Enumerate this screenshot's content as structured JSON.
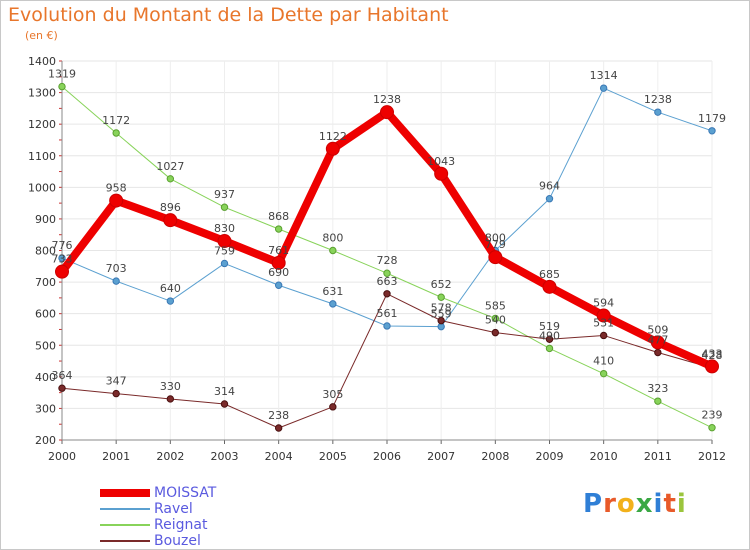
{
  "title": "Evolution du Montant de la Dette par Habitant",
  "unit": "(en €)",
  "logo": {
    "letters": [
      "P",
      "r",
      "o",
      "x",
      "i",
      "t",
      "i"
    ],
    "colors": [
      "#2f7fd6",
      "#e85a2a",
      "#f2b11b",
      "#3aa844",
      "#2f7fd6",
      "#e85a2a",
      "#9bc53d"
    ]
  },
  "chart_data": {
    "type": "line",
    "x": [
      "2000",
      "2001",
      "2002",
      "2003",
      "2004",
      "2005",
      "2006",
      "2007",
      "2008",
      "2009",
      "2010",
      "2011",
      "2012"
    ],
    "ylim": [
      200,
      1400
    ],
    "yticks": [
      200,
      300,
      400,
      500,
      600,
      700,
      800,
      900,
      1000,
      1100,
      1200,
      1300,
      1400
    ],
    "grid": true,
    "legend_position": "bottom-left",
    "series": [
      {
        "name": "Ravel",
        "color": "#5ba0d0",
        "width": 1,
        "marker_radius": 3.2,
        "values": [
          776,
          703,
          640,
          759,
          690,
          631,
          561,
          559,
          800,
          964,
          1314,
          1238,
          1179
        ],
        "labels": [
          "776",
          "703",
          "640",
          "759",
          "690",
          "631",
          "561",
          "559",
          "800",
          "964",
          "1314",
          "1238",
          "1179"
        ]
      },
      {
        "name": "Reignat",
        "color": "#88d35a",
        "width": 1,
        "marker_radius": 3.2,
        "values": [
          1319,
          1172,
          1027,
          937,
          868,
          800,
          728,
          652,
          585,
          490,
          410,
          323,
          239
        ],
        "labels": [
          "1319",
          "1172",
          "1027",
          "937",
          "868",
          "800",
          "728",
          "652",
          "585",
          "490",
          "410",
          "323",
          "239"
        ]
      },
      {
        "name": "Bouzel",
        "color": "#7a2a2a",
        "width": 1,
        "marker_radius": 3.2,
        "values": [
          364,
          347,
          330,
          314,
          238,
          305,
          663,
          578,
          540,
          519,
          531,
          477,
          428
        ],
        "labels": [
          "364",
          "347",
          "330",
          "314",
          "238",
          "305",
          "663",
          "578",
          "540",
          "519",
          "531",
          "477",
          "428"
        ]
      },
      {
        "name": "MOISSAT",
        "color": "#ee0000",
        "width": 8,
        "marker_radius": 6.5,
        "values": [
          733,
          958,
          896,
          830,
          761,
          1122,
          1238,
          1043,
          779,
          685,
          594,
          509,
          433
        ],
        "labels": [
          "733",
          "958",
          "896",
          "830",
          "761",
          "1122",
          "1238",
          "1043",
          "779",
          "685",
          "594",
          "509",
          "433"
        ]
      }
    ],
    "legend": [
      {
        "name": "MOISSAT",
        "color": "#ee0000",
        "width": 8
      },
      {
        "name": "Ravel",
        "color": "#5ba0d0",
        "width": 2
      },
      {
        "name": "Reignat",
        "color": "#88d35a",
        "width": 2
      },
      {
        "name": "Bouzel",
        "color": "#7a2a2a",
        "width": 2
      }
    ]
  }
}
